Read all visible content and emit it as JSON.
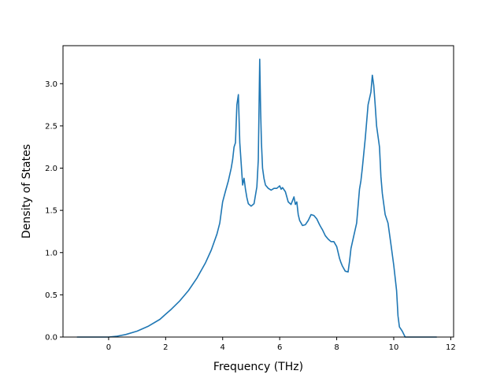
{
  "chart_data": {
    "type": "line",
    "title": "",
    "xlabel": "Frequency (THz)",
    "ylabel": "Density of States",
    "xlim": [
      -1.6,
      12.1
    ],
    "ylim": [
      0.0,
      3.45
    ],
    "xticks": [
      0,
      2,
      4,
      6,
      8,
      10,
      12
    ],
    "yticks": [
      0.0,
      0.5,
      1.0,
      1.5,
      2.0,
      2.5,
      3.0
    ],
    "xtick_labels": [
      "0",
      "2",
      "4",
      "6",
      "8",
      "10",
      "12"
    ],
    "ytick_labels": [
      "0.0",
      "0.5",
      "1.0",
      "1.5",
      "2.0",
      "2.5",
      "3.0"
    ],
    "grid": false,
    "legend": "none",
    "line_color": "#1f77b4",
    "series": [
      {
        "x": [
          -1.1,
          -0.5,
          0.0,
          0.3,
          0.6,
          1.0,
          1.4,
          1.8,
          2.0,
          2.2,
          2.5,
          2.8,
          3.1,
          3.4,
          3.6,
          3.8,
          3.9,
          4.0,
          4.1,
          4.2,
          4.3,
          4.35,
          4.4,
          4.45,
          4.5,
          4.55,
          4.6,
          4.65,
          4.7,
          4.75,
          4.8,
          4.85,
          4.9,
          5.0,
          5.1,
          5.2,
          5.25,
          5.3,
          5.33,
          5.36,
          5.4,
          5.45,
          5.5,
          5.6,
          5.7,
          5.8,
          5.9,
          6.0,
          6.05,
          6.1,
          6.2,
          6.3,
          6.4,
          6.5,
          6.55,
          6.6,
          6.65,
          6.7,
          6.75,
          6.8,
          6.9,
          7.0,
          7.1,
          7.2,
          7.3,
          7.4,
          7.45,
          7.5,
          7.6,
          7.7,
          7.8,
          7.9,
          8.0,
          8.1,
          8.15,
          8.2,
          8.3,
          8.4,
          8.45,
          8.5,
          8.6,
          8.7,
          8.8,
          8.85,
          8.9,
          9.0,
          9.1,
          9.2,
          9.25,
          9.3,
          9.35,
          9.4,
          9.5,
          9.55,
          9.6,
          9.7,
          9.8,
          9.9,
          10.0,
          10.05,
          10.1,
          10.15,
          10.2,
          10.3,
          10.4,
          10.5,
          10.8,
          11.2,
          11.5
        ],
        "values": [
          0.0,
          0.0,
          0.0,
          0.01,
          0.03,
          0.07,
          0.13,
          0.21,
          0.27,
          0.33,
          0.43,
          0.55,
          0.7,
          0.88,
          1.03,
          1.22,
          1.35,
          1.6,
          1.73,
          1.85,
          2.0,
          2.1,
          2.25,
          2.3,
          2.75,
          2.87,
          2.3,
          2.05,
          1.8,
          1.88,
          1.75,
          1.65,
          1.58,
          1.55,
          1.58,
          1.78,
          2.1,
          3.29,
          2.7,
          2.3,
          2.0,
          1.88,
          1.8,
          1.76,
          1.74,
          1.76,
          1.76,
          1.79,
          1.75,
          1.77,
          1.72,
          1.6,
          1.57,
          1.66,
          1.57,
          1.6,
          1.45,
          1.38,
          1.35,
          1.32,
          1.33,
          1.38,
          1.45,
          1.44,
          1.4,
          1.33,
          1.3,
          1.27,
          1.2,
          1.16,
          1.13,
          1.13,
          1.07,
          0.93,
          0.88,
          0.84,
          0.78,
          0.77,
          0.9,
          1.05,
          1.2,
          1.35,
          1.75,
          1.85,
          2.0,
          2.35,
          2.75,
          2.9,
          3.1,
          2.98,
          2.75,
          2.5,
          2.25,
          1.9,
          1.7,
          1.45,
          1.35,
          1.1,
          0.85,
          0.7,
          0.55,
          0.25,
          0.12,
          0.07,
          0.0,
          0.0,
          0.0,
          0.0,
          0.0
        ]
      }
    ]
  }
}
